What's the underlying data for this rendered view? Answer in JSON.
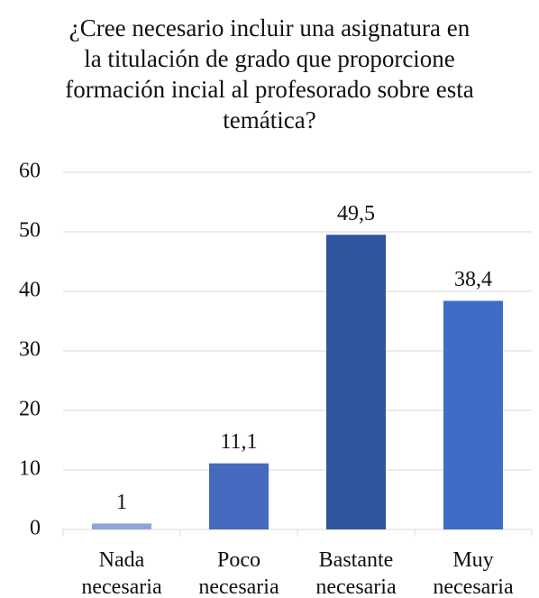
{
  "chart_data": {
    "type": "bar",
    "title": "¿Cree necesario incluir una asignatura en la titulación de grado que proporcione formación incial al profesorado sobre esta temática?",
    "categories": [
      "Nada necesaria",
      "Poco necesaria",
      "Bastante necesaria",
      "Muy necesaria"
    ],
    "values": [
      1,
      11.1,
      49.5,
      38.4
    ],
    "value_labels": [
      "1",
      "11,1",
      "49,5",
      "38,4"
    ],
    "colors": [
      "#8ea5dc",
      "#4569bd",
      "#2f559f",
      "#3e6cc8"
    ],
    "ylim": [
      0,
      60
    ],
    "yticks": [
      0,
      10,
      20,
      30,
      40,
      50,
      60
    ],
    "grid": true
  }
}
